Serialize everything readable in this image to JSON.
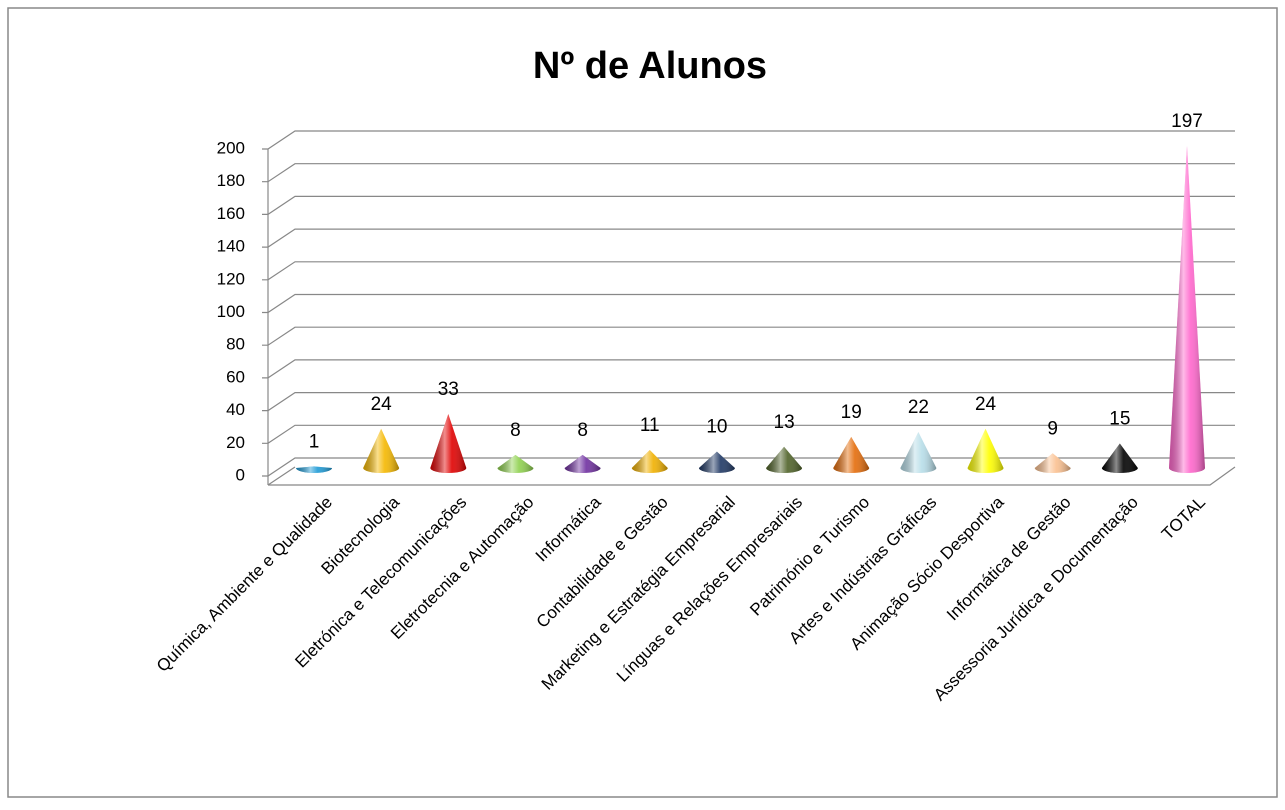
{
  "chart_data": {
    "type": "cone",
    "title": "Nº de Alunos",
    "categories": [
      "Química, Ambiente e Qualidade",
      "Biotecnologia",
      "Eletrónica e Telecomunicações",
      "Eletrotecnia e Automação",
      "Informática",
      "Contabilidade e Gestão",
      "Marketing e Estratégia Empresarial",
      "Línguas e Relações Empresariais",
      "Património e Turismo",
      "Artes e Indústrias Gráficas",
      "Animação Sócio Desportiva",
      "Informática de Gestão",
      "Assessoria Jurídica e Documentação",
      "TOTAL"
    ],
    "values": [
      1,
      24,
      33,
      8,
      8,
      11,
      10,
      13,
      19,
      22,
      24,
      9,
      15,
      197
    ],
    "colors": [
      "#1f9bd6",
      "#f5b800",
      "#e00000",
      "#8fd14f",
      "#7030a0",
      "#f0b000",
      "#1f3864",
      "#4f6228",
      "#e46c0a",
      "#b7dde8",
      "#ffff00",
      "#fac090",
      "#000000",
      "#ff66cc"
    ],
    "ylim": [
      0,
      200
    ],
    "yticks": [
      0,
      20,
      40,
      60,
      80,
      100,
      120,
      140,
      160,
      180,
      200
    ],
    "grid": true
  }
}
